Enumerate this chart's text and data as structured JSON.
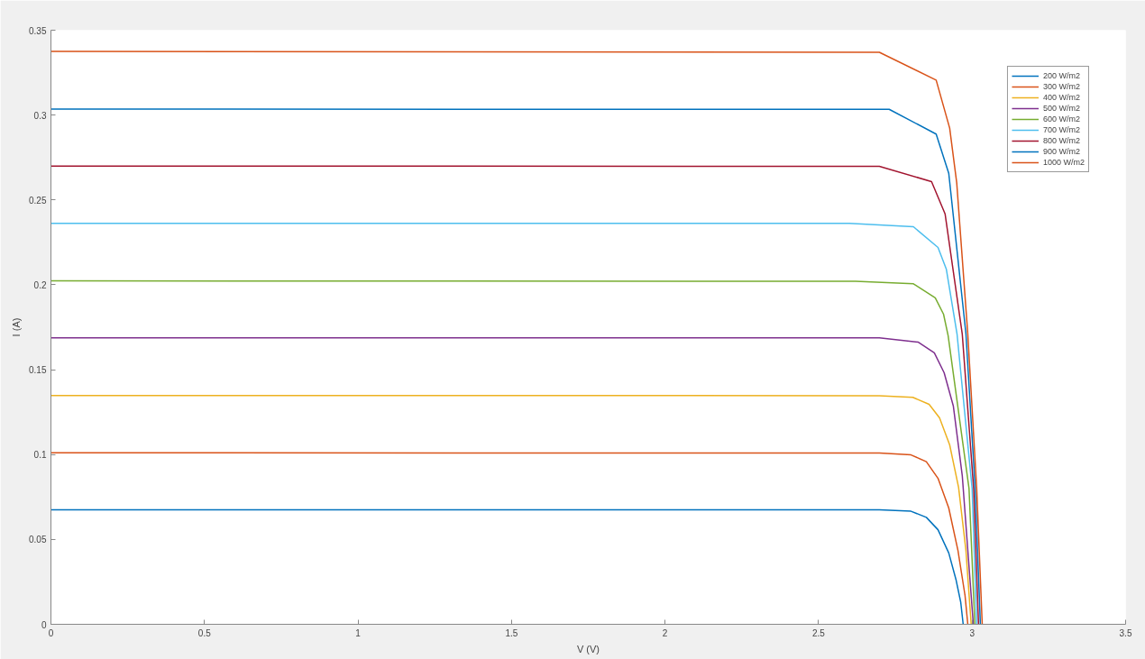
{
  "chart_data": {
    "type": "line",
    "xlabel": "V (V)",
    "ylabel": "I (A)",
    "xlim": [
      0,
      3.5
    ],
    "ylim": [
      0,
      0.35
    ],
    "xticks": [
      0,
      0.5,
      1,
      1.5,
      2,
      2.5,
      3,
      3.5
    ],
    "yticks": [
      0,
      0.05,
      0.1,
      0.15,
      0.2,
      0.25,
      0.3,
      0.35
    ],
    "grid": false,
    "legend": "top right",
    "marker": "none",
    "line_style": "solid",
    "series": [
      {
        "name": "200 W/m2",
        "color": "#0072bd",
        "x": [
          0,
          2.698,
          2.801,
          2.851,
          2.889,
          2.924,
          2.948,
          2.963,
          2.971
        ],
        "values": [
          0.0674,
          0.0674,
          0.0666,
          0.063,
          0.0557,
          0.042,
          0.026,
          0.013,
          0
        ]
      },
      {
        "name": "300 W/m2",
        "color": "#d95319",
        "x": [
          0,
          2.698,
          2.801,
          2.851,
          2.889,
          2.924,
          2.954,
          2.977,
          2.986
        ],
        "values": [
          0.101,
          0.1009,
          0.0998,
          0.0958,
          0.086,
          0.0685,
          0.0435,
          0.017,
          0
        ]
      },
      {
        "name": "400 W/m2",
        "color": "#edb120",
        "x": [
          0,
          2.698,
          2.807,
          2.86,
          2.894,
          2.927,
          2.956,
          2.98,
          2.997
        ],
        "values": [
          0.1348,
          0.1347,
          0.1337,
          0.1296,
          0.1216,
          0.1057,
          0.0807,
          0.0435,
          0
        ]
      },
      {
        "name": "500 W/m2",
        "color": "#7e2f8e",
        "x": [
          0,
          2.698,
          2.825,
          2.877,
          2.909,
          2.939,
          2.968,
          3.004
        ],
        "values": [
          0.1687,
          0.1687,
          0.1662,
          0.1599,
          0.1482,
          0.1285,
          0.0876,
          0
        ]
      },
      {
        "name": "600 W/m2",
        "color": "#77ac30",
        "x": [
          0,
          2.62,
          2.809,
          2.88,
          2.907,
          2.922,
          2.99,
          3.009
        ],
        "values": [
          0.2023,
          0.2021,
          0.2006,
          0.1923,
          0.1827,
          0.17,
          0.08,
          0
        ]
      },
      {
        "name": "700 W/m2",
        "color": "#4dbeee",
        "x": [
          0,
          2.6,
          2.809,
          2.889,
          2.916,
          2.951,
          3.0,
          3.015
        ],
        "values": [
          0.2362,
          0.2362,
          0.2342,
          0.222,
          0.2093,
          0.171,
          0.08,
          0
        ]
      },
      {
        "name": "800 W/m2",
        "color": "#a2142f",
        "x": [
          0,
          2.698,
          2.868,
          2.912,
          2.968,
          3.005,
          3.021
        ],
        "values": [
          0.27,
          0.2698,
          0.2608,
          0.2418,
          0.171,
          0.08,
          0
        ]
      },
      {
        "name": "900 W/m2",
        "color": "#0072bd",
        "x": [
          0,
          2.73,
          2.883,
          2.924,
          2.98,
          3.01,
          3.027
        ],
        "values": [
          0.3035,
          0.3034,
          0.2888,
          0.2657,
          0.171,
          0.08,
          0
        ]
      },
      {
        "name": "1000 W/m2",
        "color": "#d95319",
        "x": [
          0,
          2.698,
          2.883,
          2.927,
          2.95,
          2.986,
          3.015,
          3.033
        ],
        "values": [
          0.3375,
          0.337,
          0.3206,
          0.2923,
          0.26,
          0.171,
          0.08,
          0
        ]
      }
    ]
  }
}
